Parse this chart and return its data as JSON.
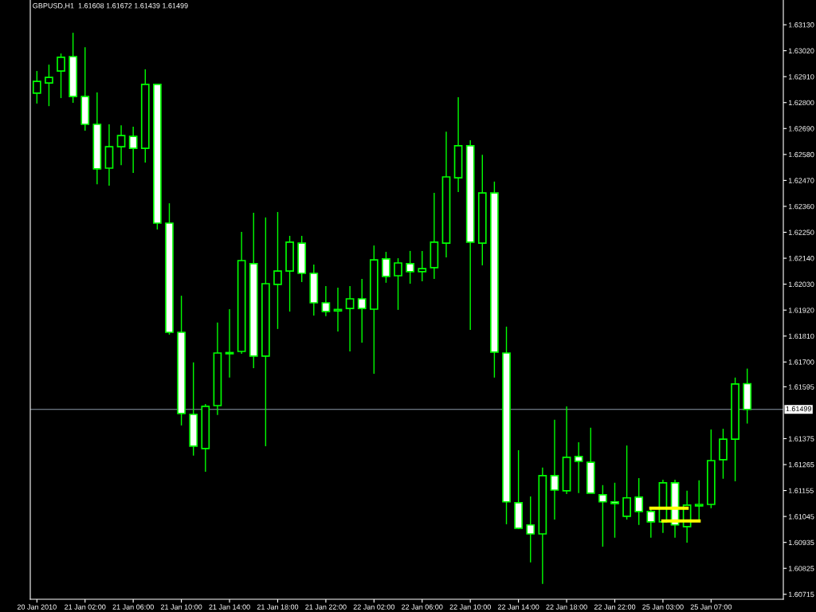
{
  "chart_data": {
    "type": "candlestick",
    "title": "GBPUSD,H1  1.61608 1.61672 1.61439 1.61499",
    "categories": [
      "20 Jan 2010",
      null,
      null,
      null,
      "21 Jan 02:00",
      null,
      null,
      null,
      "21 Jan 06:00",
      null,
      null,
      null,
      "21 Jan 10:00",
      null,
      null,
      null,
      "21 Jan 14:00",
      null,
      null,
      null,
      "21 Jan 18:00",
      null,
      null,
      null,
      "21 Jan 22:00",
      null,
      null,
      null,
      "22 Jan 02:00",
      null,
      null,
      null,
      "22 Jan 06:00",
      null,
      null,
      null,
      "22 Jan 10:00",
      null,
      null,
      null,
      "22 Jan 14:00",
      null,
      null,
      null,
      "22 Jan 18:00",
      null,
      null,
      null,
      "22 Jan 22:00",
      null,
      null,
      null,
      "25 Jan 03:00",
      null,
      null,
      null,
      "25 Jan 07:00",
      null,
      null,
      null
    ],
    "ohlc": [
      [
        1.6284,
        1.62934,
        1.62796,
        1.6289
      ],
      [
        1.62883,
        1.62961,
        1.62785,
        1.62907
      ],
      [
        1.62934,
        1.63008,
        1.62819,
        1.62992
      ],
      [
        1.62995,
        1.63096,
        1.62799,
        1.62826
      ],
      [
        1.62826,
        1.63035,
        1.62681,
        1.62708
      ],
      [
        1.62708,
        1.62843,
        1.62454,
        1.62519
      ],
      [
        1.62522,
        1.62708,
        1.62448,
        1.62613
      ],
      [
        1.62613,
        1.62704,
        1.62535,
        1.6266
      ],
      [
        1.62657,
        1.62698,
        1.62502,
        1.62606
      ],
      [
        1.62606,
        1.62941,
        1.62546,
        1.62877
      ],
      [
        1.62877,
        1.62877,
        1.62262,
        1.62289
      ],
      [
        1.62289,
        1.62373,
        1.61816,
        1.61826
      ],
      [
        1.61826,
        1.61981,
        1.61431,
        1.61482
      ],
      [
        1.61478,
        1.61698,
        1.61303,
        1.61343
      ],
      [
        1.61333,
        1.61522,
        1.61235,
        1.61512
      ],
      [
        1.61515,
        1.61867,
        1.61475,
        1.61738
      ],
      [
        1.61735,
        1.61924,
        1.61634,
        1.6174
      ],
      [
        1.61745,
        1.62252,
        1.61735,
        1.6213
      ],
      [
        1.62117,
        1.62333,
        1.61674,
        1.61725
      ],
      [
        1.61725,
        1.62313,
        1.61343,
        1.62032
      ],
      [
        1.62029,
        1.62336,
        1.6184,
        1.62086
      ],
      [
        1.62086,
        1.62235,
        1.61914,
        1.62208
      ],
      [
        1.62204,
        1.62235,
        1.62039,
        1.62076
      ],
      [
        1.62076,
        1.62113,
        1.61897,
        1.61951
      ],
      [
        1.61951,
        1.62022,
        1.61894,
        1.61914
      ],
      [
        1.61917,
        1.62015,
        1.61829,
        1.61923
      ],
      [
        1.61927,
        1.62022,
        1.61745,
        1.61968
      ],
      [
        1.61968,
        1.62052,
        1.61782,
        1.61927
      ],
      [
        1.61924,
        1.62194,
        1.6165,
        1.62133
      ],
      [
        1.62137,
        1.62167,
        1.62036,
        1.62063
      ],
      [
        1.62066,
        1.6214,
        1.61921,
        1.6212
      ],
      [
        1.62117,
        1.62171,
        1.62032,
        1.62083
      ],
      [
        1.62083,
        1.62171,
        1.62042,
        1.62096
      ],
      [
        1.621,
        1.62417,
        1.62052,
        1.62208
      ],
      [
        1.62204,
        1.62677,
        1.62144,
        1.62485
      ],
      [
        1.62481,
        1.62823,
        1.62421,
        1.62617
      ],
      [
        1.62617,
        1.6264,
        1.61836,
        1.62208
      ],
      [
        1.62204,
        1.62579,
        1.6211,
        1.62417
      ],
      [
        1.62417,
        1.62465,
        1.61634,
        1.61742
      ],
      [
        1.61738,
        1.6185,
        1.61012,
        1.61107
      ],
      [
        1.61103,
        1.61326,
        1.60992,
        1.60995
      ],
      [
        1.61009,
        1.6113,
        1.6085,
        1.60971
      ],
      [
        1.60971,
        1.61252,
        1.60759,
        1.61218
      ],
      [
        1.61218,
        1.61455,
        1.61032,
        1.61157
      ],
      [
        1.61154,
        1.61512,
        1.6114,
        1.61296
      ],
      [
        1.61299,
        1.6136,
        1.61144,
        1.61279
      ],
      [
        1.61275,
        1.61421,
        1.61144,
        1.61144
      ],
      [
        1.61137,
        1.61178,
        1.60917,
        1.61107
      ],
      [
        1.61107,
        1.61188,
        1.60955,
        1.611
      ],
      [
        1.61046,
        1.61346,
        1.61032,
        1.61124
      ],
      [
        1.61127,
        1.61208,
        1.61009,
        1.61066
      ],
      [
        1.61066,
        1.6108,
        1.60955,
        1.61022
      ],
      [
        1.61022,
        1.61201,
        1.60975,
        1.61188
      ],
      [
        1.61188,
        1.61201,
        1.60955,
        1.61009
      ],
      [
        1.61002,
        1.61154,
        1.60934,
        1.61093
      ],
      [
        1.6109,
        1.61198,
        1.61032,
        1.61096
      ],
      [
        1.61096,
        1.61414,
        1.6108,
        1.61282
      ],
      [
        1.61286,
        1.61417,
        1.61205,
        1.61373
      ],
      [
        1.61373,
        1.61634,
        1.61194,
        1.61607
      ],
      [
        1.61608,
        1.61672,
        1.61439,
        1.61499
      ]
    ],
    "color": "#00ff00",
    "colors": [
      "#000000",
      "#000000",
      "#000000",
      "#ffffff",
      "#ffffff",
      "#ffffff",
      "#000000",
      "#000000",
      "#ffffff",
      "#000000",
      "#ffffff",
      "#ffffff",
      "#ffffff",
      "#ffffff",
      "#000000",
      "#000000",
      "#000000",
      "#000000",
      "#ffffff",
      "#000000",
      "#000000",
      "#000000",
      "#ffffff",
      "#ffffff",
      "#ffffff",
      "#000000",
      "#000000",
      "#ffffff",
      "#000000",
      "#ffffff",
      "#000000",
      "#ffffff",
      "#000000",
      "#000000",
      "#000000",
      "#000000",
      "#ffffff",
      "#000000",
      "#ffffff",
      "#ffffff",
      "#ffffff",
      "#ffffff",
      "#000000",
      "#ffffff",
      "#000000",
      "#ffffff",
      "#ffffff",
      "#ffffff",
      "#ffffff",
      "#000000",
      "#ffffff",
      "#ffffff",
      "#000000",
      "#ffffff",
      "#000000",
      "#000000",
      "#000000",
      "#000000",
      "#000000",
      "#ffffff"
    ],
    "series": [
      {
        "type": "line",
        "color": "#ffff00",
        "values": [
          null,
          null,
          null,
          null,
          null,
          null,
          null,
          null,
          null,
          null,
          null,
          null,
          null,
          null,
          null,
          null,
          null,
          null,
          null,
          null,
          null,
          null,
          null,
          null,
          null,
          null,
          null,
          null,
          null,
          null,
          null,
          null,
          null,
          null,
          null,
          null,
          null,
          null,
          null,
          null,
          null,
          null,
          null,
          null,
          null,
          null,
          null,
          null,
          null,
          null,
          null,
          1.6108,
          1.6108,
          1.6108,
          1.6108,
          null,
          null,
          null,
          null,
          null
        ]
      },
      {
        "type": "line",
        "color": "#ffff00",
        "values": [
          null,
          null,
          null,
          null,
          null,
          null,
          null,
          null,
          null,
          null,
          null,
          null,
          null,
          null,
          null,
          null,
          null,
          null,
          null,
          null,
          null,
          null,
          null,
          null,
          null,
          null,
          null,
          null,
          null,
          null,
          null,
          null,
          null,
          null,
          null,
          null,
          null,
          null,
          null,
          null,
          null,
          null,
          null,
          null,
          null,
          null,
          null,
          null,
          null,
          null,
          null,
          null,
          1.61026,
          1.61026,
          1.61026,
          1.61026,
          null,
          null,
          null,
          null
        ]
      }
    ],
    "ylim": [
      1.60694,
      1.63235
    ],
    "yticks": [
      {
        "value": 1.6313,
        "label": "1.63130"
      },
      {
        "value": 1.6302,
        "label": "1.63020"
      },
      {
        "value": 1.6291,
        "label": "1.62910"
      },
      {
        "value": 1.628,
        "label": "1.62800"
      },
      {
        "value": 1.6269,
        "label": "1.62690"
      },
      {
        "value": 1.6258,
        "label": "1.62580"
      },
      {
        "value": 1.6247,
        "label": "1.62470"
      },
      {
        "value": 1.6236,
        "label": "1.62360"
      },
      {
        "value": 1.6225,
        "label": "1.62250"
      },
      {
        "value": 1.6214,
        "label": "1.62140"
      },
      {
        "value": 1.6203,
        "label": "1.62030"
      },
      {
        "value": 1.6192,
        "label": "1.61920"
      },
      {
        "value": 1.6181,
        "label": "1.61810"
      },
      {
        "value": 1.617,
        "label": "1.61700"
      },
      {
        "value": 1.61595,
        "label": "1.61595"
      },
      {
        "value": 1.61375,
        "label": "1.61375"
      },
      {
        "value": 1.61265,
        "label": "1.61265"
      },
      {
        "value": 1.61155,
        "label": "1.61155"
      },
      {
        "value": 1.61045,
        "label": "1.61045"
      },
      {
        "value": 1.60935,
        "label": "1.60935"
      },
      {
        "value": 1.60825,
        "label": "1.60825"
      },
      {
        "value": 1.60715,
        "label": "1.60715"
      }
    ],
    "ref_lines": [
      {
        "axis": "y",
        "value": 1.61499,
        "label": "1.61499",
        "color": "#8c9aa8"
      }
    ],
    "grid": false
  }
}
